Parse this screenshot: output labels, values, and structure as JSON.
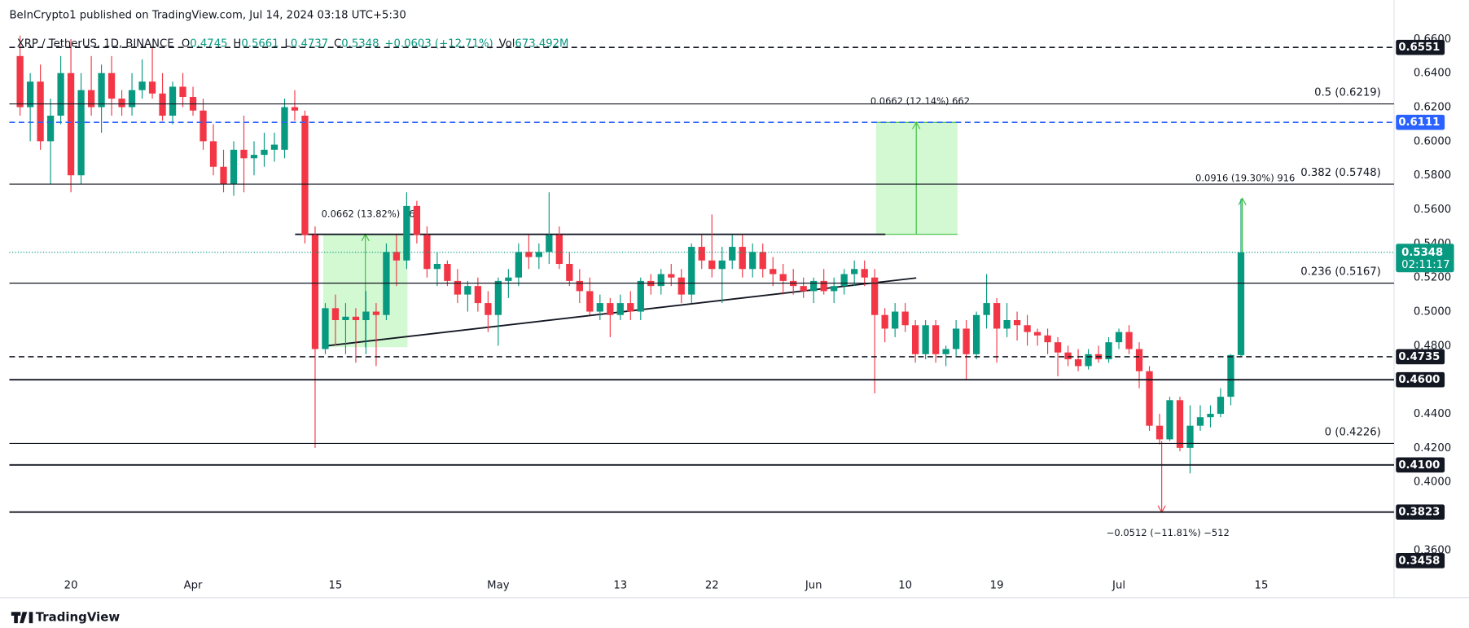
{
  "chart_data": {
    "type": "candlestick",
    "title": "BeInCrypto1 published on TradingView.com, Jul 14, 2024 03:18 UTC+5:30",
    "header": {
      "symbol": "XRP / TetherUS, 1D, BINANCE",
      "o_label": "O",
      "o": "0.4745",
      "h_label": "H",
      "h": "0.5661",
      "l_label": "L",
      "l": "0.4737",
      "c_label": "C",
      "c": "0.5348",
      "change": "+0.0603 (+12.71%)",
      "vol_label": "Vol",
      "vol": "673.492M"
    },
    "open": [
      0.65,
      0.62,
      0.635,
      0.6,
      0.615,
      0.64,
      0.58,
      0.63,
      0.62,
      0.64,
      0.625,
      0.62,
      0.63,
      0.635,
      0.628,
      0.615,
      0.632,
      0.626,
      0.618,
      0.6,
      0.585,
      0.575,
      0.595,
      0.59,
      0.592,
      0.595,
      0.595,
      0.62,
      0.615,
      0.545,
      0.478,
      0.502,
      0.495,
      0.497,
      0.495,
      0.5,
      0.498,
      0.535,
      0.53,
      0.562,
      0.545,
      0.525,
      0.528,
      0.518,
      0.51,
      0.515,
      0.505,
      0.498,
      0.518,
      0.52,
      0.535,
      0.532,
      0.535,
      0.545,
      0.528,
      0.518,
      0.512,
      0.5,
      0.505,
      0.498,
      0.505,
      0.5,
      0.518,
      0.515,
      0.522,
      0.52,
      0.51,
      0.538,
      0.53,
      0.525,
      0.53,
      0.538,
      0.525,
      0.535,
      0.525,
      0.522,
      0.518,
      0.515,
      0.512,
      0.518,
      0.512,
      0.515,
      0.522,
      0.525,
      0.52,
      0.498,
      0.49,
      0.5,
      0.492,
      0.475,
      0.492,
      0.475,
      0.478,
      0.49,
      0.475,
      0.498,
      0.505,
      0.49,
      0.495,
      0.492,
      0.488,
      0.486,
      0.482,
      0.476,
      0.472,
      0.468,
      0.475,
      0.472,
      0.482,
      0.488,
      0.478,
      0.465,
      0.433,
      0.425,
      0.448,
      0.42,
      0.433,
      0.438,
      0.44,
      0.45,
      0.4745
    ],
    "high": [
      0.662,
      0.64,
      0.645,
      0.625,
      0.65,
      0.66,
      0.64,
      0.65,
      0.645,
      0.65,
      0.63,
      0.64,
      0.648,
      0.655,
      0.64,
      0.635,
      0.64,
      0.632,
      0.625,
      0.61,
      0.595,
      0.6,
      0.615,
      0.6,
      0.605,
      0.605,
      0.625,
      0.63,
      0.618,
      0.55,
      0.505,
      0.51,
      0.505,
      0.502,
      0.512,
      0.505,
      0.54,
      0.545,
      0.57,
      0.565,
      0.55,
      0.535,
      0.53,
      0.525,
      0.518,
      0.52,
      0.512,
      0.52,
      0.525,
      0.54,
      0.545,
      0.54,
      0.57,
      0.55,
      0.535,
      0.525,
      0.52,
      0.51,
      0.508,
      0.51,
      0.512,
      0.52,
      0.522,
      0.525,
      0.528,
      0.525,
      0.54,
      0.545,
      0.557,
      0.538,
      0.545,
      0.545,
      0.54,
      0.54,
      0.532,
      0.528,
      0.525,
      0.52,
      0.52,
      0.525,
      0.52,
      0.525,
      0.53,
      0.53,
      0.525,
      0.502,
      0.505,
      0.505,
      0.495,
      0.495,
      0.495,
      0.48,
      0.495,
      0.495,
      0.5,
      0.522,
      0.508,
      0.505,
      0.5,
      0.498,
      0.49,
      0.49,
      0.485,
      0.48,
      0.478,
      0.478,
      0.48,
      0.485,
      0.49,
      0.492,
      0.482,
      0.468,
      0.44,
      0.45,
      0.45,
      0.445,
      0.445,
      0.445,
      0.455,
      0.475,
      0.5661
    ],
    "low": [
      0.615,
      0.6,
      0.595,
      0.575,
      0.61,
      0.57,
      0.575,
      0.615,
      0.605,
      0.615,
      0.615,
      0.615,
      0.625,
      0.625,
      0.612,
      0.61,
      0.62,
      0.615,
      0.595,
      0.58,
      0.57,
      0.568,
      0.57,
      0.58,
      0.585,
      0.588,
      0.59,
      0.612,
      0.54,
      0.42,
      0.475,
      0.48,
      0.475,
      0.47,
      0.475,
      0.468,
      0.495,
      0.515,
      0.525,
      0.54,
      0.52,
      0.515,
      0.515,
      0.505,
      0.5,
      0.5,
      0.488,
      0.48,
      0.508,
      0.515,
      0.525,
      0.525,
      0.528,
      0.525,
      0.515,
      0.505,
      0.498,
      0.495,
      0.485,
      0.495,
      0.495,
      0.495,
      0.51,
      0.51,
      0.515,
      0.505,
      0.505,
      0.525,
      0.52,
      0.505,
      0.525,
      0.52,
      0.52,
      0.52,
      0.515,
      0.51,
      0.51,
      0.508,
      0.505,
      0.51,
      0.505,
      0.51,
      0.515,
      0.515,
      0.452,
      0.482,
      0.485,
      0.488,
      0.47,
      0.472,
      0.47,
      0.468,
      0.474,
      0.46,
      0.472,
      0.49,
      0.47,
      0.485,
      0.483,
      0.48,
      0.48,
      0.475,
      0.462,
      0.468,
      0.465,
      0.466,
      0.47,
      0.47,
      0.478,
      0.475,
      0.455,
      0.43,
      0.422,
      0.424,
      0.418,
      0.405,
      0.43,
      0.432,
      0.438,
      0.445,
      0.4737
    ],
    "close": [
      0.62,
      0.635,
      0.6,
      0.615,
      0.64,
      0.58,
      0.63,
      0.62,
      0.64,
      0.625,
      0.62,
      0.63,
      0.635,
      0.628,
      0.615,
      0.632,
      0.626,
      0.618,
      0.6,
      0.585,
      0.575,
      0.595,
      0.59,
      0.592,
      0.595,
      0.598,
      0.62,
      0.618,
      0.545,
      0.478,
      0.502,
      0.495,
      0.497,
      0.495,
      0.5,
      0.498,
      0.535,
      0.53,
      0.562,
      0.545,
      0.525,
      0.528,
      0.518,
      0.51,
      0.515,
      0.505,
      0.498,
      0.518,
      0.52,
      0.535,
      0.532,
      0.535,
      0.545,
      0.528,
      0.518,
      0.512,
      0.5,
      0.505,
      0.498,
      0.505,
      0.5,
      0.518,
      0.515,
      0.522,
      0.52,
      0.51,
      0.538,
      0.53,
      0.525,
      0.53,
      0.538,
      0.525,
      0.535,
      0.525,
      0.522,
      0.518,
      0.515,
      0.512,
      0.518,
      0.512,
      0.515,
      0.522,
      0.525,
      0.52,
      0.498,
      0.49,
      0.5,
      0.492,
      0.475,
      0.492,
      0.475,
      0.478,
      0.49,
      0.475,
      0.498,
      0.505,
      0.49,
      0.495,
      0.492,
      0.488,
      0.486,
      0.482,
      0.476,
      0.472,
      0.468,
      0.475,
      0.472,
      0.482,
      0.488,
      0.478,
      0.465,
      0.433,
      0.425,
      0.448,
      0.42,
      0.433,
      0.438,
      0.44,
      0.45,
      0.4745,
      0.5348
    ],
    "up_color": "#089981",
    "down_color": "#f23645",
    "ylim": [
      0.3332,
      0.6829
    ],
    "yticks": [
      {
        "value": 0.66,
        "label": "0.6600"
      },
      {
        "value": 0.64,
        "label": "0.6400"
      },
      {
        "value": 0.62,
        "label": "0.6200"
      },
      {
        "value": 0.6,
        "label": "0.6000"
      },
      {
        "value": 0.58,
        "label": "0.5800"
      },
      {
        "value": 0.56,
        "label": "0.5600"
      },
      {
        "value": 0.54,
        "label": "0.5400"
      },
      {
        "value": 0.52,
        "label": "0.5200"
      },
      {
        "value": 0.5,
        "label": "0.5000"
      },
      {
        "value": 0.48,
        "label": "0.4800"
      },
      {
        "value": 0.44,
        "label": "0.4400"
      },
      {
        "value": 0.42,
        "label": "0.4200"
      },
      {
        "value": 0.4,
        "label": "0.4000"
      },
      {
        "value": 0.36,
        "label": "0.3600"
      }
    ],
    "xticks": [
      {
        "value": 5,
        "label": "20"
      },
      {
        "value": 17,
        "label": "Apr"
      },
      {
        "value": 31,
        "label": "15"
      },
      {
        "value": 47,
        "label": "May"
      },
      {
        "value": 59,
        "label": "13"
      },
      {
        "value": 68,
        "label": "22"
      },
      {
        "value": 78,
        "label": "Jun"
      },
      {
        "value": 87,
        "label": "10"
      },
      {
        "value": 96,
        "label": "19"
      },
      {
        "value": 108,
        "label": "Jul"
      },
      {
        "value": 122,
        "label": "15"
      }
    ],
    "levels": [
      {
        "value": 0.6551,
        "label": "0.6551",
        "style": "dashed",
        "color": "#131722"
      },
      {
        "value": 0.6111,
        "label": "0.6111",
        "style": "dashed",
        "color": "#2962ff"
      },
      {
        "value": 0.4735,
        "label": "0.4735",
        "style": "dashed",
        "color": "#131722"
      },
      {
        "value": 0.46,
        "label": "0.4600",
        "style": "solid",
        "color": "#131722"
      },
      {
        "value": 0.41,
        "label": "0.4100",
        "style": "solid",
        "color": "#131722"
      },
      {
        "value": 0.3823,
        "label": "0.3823",
        "style": "solid",
        "color": "#131722"
      }
    ],
    "fib_levels": [
      {
        "value": 0.6219,
        "label": "0.5 (0.6219)"
      },
      {
        "value": 0.5748,
        "label": "0.382 (0.5748)"
      },
      {
        "value": 0.5167,
        "label": "0.236 (0.5167)"
      },
      {
        "value": 0.4226,
        "label": "0 (0.4226)"
      }
    ],
    "low_label": {
      "value": 0.3458,
      "label": "0.3458"
    },
    "last_price": {
      "value": 0.5348,
      "label": "0.5348"
    },
    "countdown": "02:11:17",
    "annotations": [
      "0.0662 (13.82%) 662",
      "0.0662 (12.14%) 662",
      "0.0916 (19.30%) 916",
      "−0.0512 (−11.81%) −512"
    ],
    "footer": "TradingView"
  }
}
